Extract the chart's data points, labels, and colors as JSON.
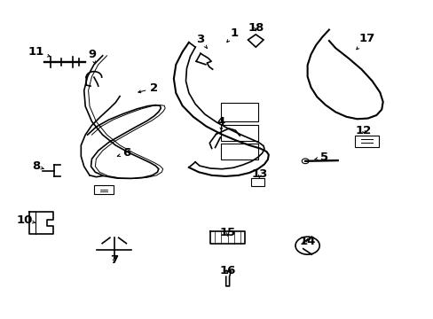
{
  "background_color": "#ffffff",
  "line_color": "#000000",
  "label_color": "#000000",
  "figsize": [
    4.89,
    3.6
  ],
  "dpi": 100
}
